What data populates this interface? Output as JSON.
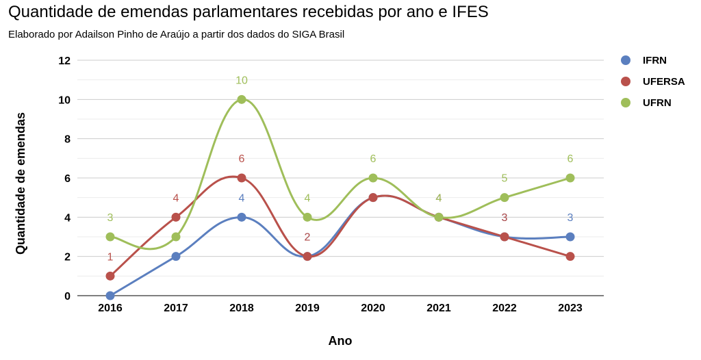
{
  "chart_data": {
    "type": "line",
    "title": "Quantidade de emendas parlamentares recebidas por ano e IFES",
    "subtitle": "Elaborado por Adailson Pinho de Araújo a partir dos dados do SIGA Brasil",
    "xlabel": "Ano",
    "ylabel": "Quantidade de emendas",
    "categories": [
      "2016",
      "2017",
      "2018",
      "2019",
      "2020",
      "2021",
      "2022",
      "2023"
    ],
    "ylim": [
      0,
      12
    ],
    "yticks": [
      0,
      2,
      4,
      6,
      8,
      10,
      12
    ],
    "grid": true,
    "legend_position": "right",
    "series": [
      {
        "name": "IFRN",
        "color": "#5b7fbf",
        "values": [
          0,
          2,
          4,
          2,
          5,
          4,
          3,
          3
        ]
      },
      {
        "name": "UFERSA",
        "color": "#b9514b",
        "values": [
          1,
          4,
          6,
          2,
          5,
          4,
          3,
          2
        ]
      },
      {
        "name": "UFRN",
        "color": "#9fbe5a",
        "values": [
          3,
          3,
          10,
          4,
          6,
          4,
          5,
          6
        ]
      }
    ]
  }
}
